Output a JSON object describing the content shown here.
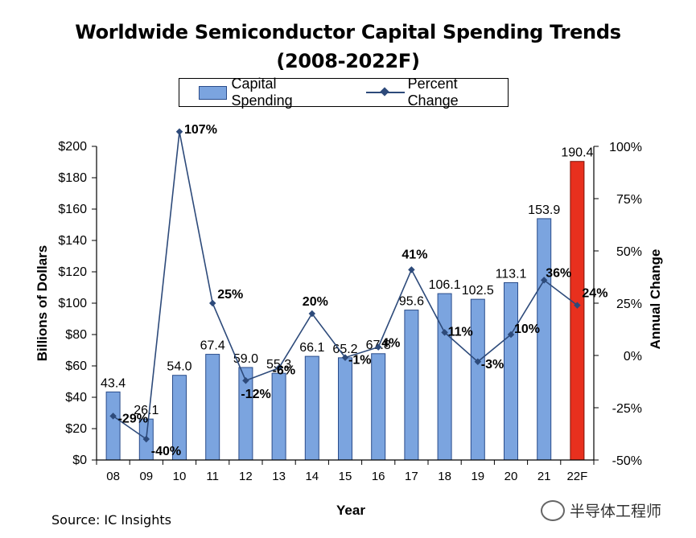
{
  "title_line1": "Worldwide Semiconductor Capital Spending Trends",
  "title_line2": "(2008-2022F)",
  "legend": {
    "bar_label": "Capital Spending",
    "line_label": "Percent Change"
  },
  "source": "Source: IC Insights",
  "watermark": "半导体工程师",
  "colors": {
    "bar": "#7ba4df",
    "bar_stroke": "#2a4c8a",
    "forecast_bar": "#e8301e",
    "line": "#2d4a7a"
  },
  "chart_data": {
    "type": "bar",
    "categories": [
      "08",
      "09",
      "10",
      "11",
      "12",
      "13",
      "14",
      "15",
      "16",
      "17",
      "18",
      "19",
      "20",
      "21",
      "22F"
    ],
    "xlabel": "Year",
    "ylabel": "Billions of Dollars",
    "y2label": "Annual Change",
    "ylim": [
      0,
      200
    ],
    "y2lim": [
      -50,
      100
    ],
    "yticks": [
      "$0",
      "$20",
      "$40",
      "$60",
      "$80",
      "$100",
      "$120",
      "$140",
      "$160",
      "$180",
      "$200"
    ],
    "y2ticks": [
      "-50%",
      "-25%",
      "0%",
      "25%",
      "50%",
      "75%",
      "100%"
    ],
    "series": [
      {
        "name": "Capital Spending",
        "type": "bar",
        "values": [
          43.4,
          26.1,
          54.0,
          67.4,
          59.0,
          55.3,
          66.1,
          65.2,
          67.8,
          95.6,
          106.1,
          102.5,
          113.1,
          153.9,
          190.4
        ],
        "labels": [
          "43.4",
          "26.1",
          "54.0",
          "67.4",
          "59.0",
          "55.3",
          "66.1",
          "65.2",
          "67.8",
          "95.6",
          "106.1",
          "102.5",
          "113.1",
          "153.9",
          "190.4"
        ]
      },
      {
        "name": "Percent Change",
        "type": "line",
        "axis": "right",
        "values": [
          -29,
          -40,
          107,
          25,
          -12,
          -6,
          20,
          -1,
          4,
          41,
          11,
          -3,
          10,
          36,
          24
        ],
        "labels": [
          "-29%",
          "-40%",
          "107%",
          "25%",
          "-12%",
          "-6%",
          "20%",
          "-1%",
          "4%",
          "41%",
          "11%",
          "-3%",
          "10%",
          "36%",
          "24%"
        ]
      }
    ],
    "forecast_index": 14
  }
}
